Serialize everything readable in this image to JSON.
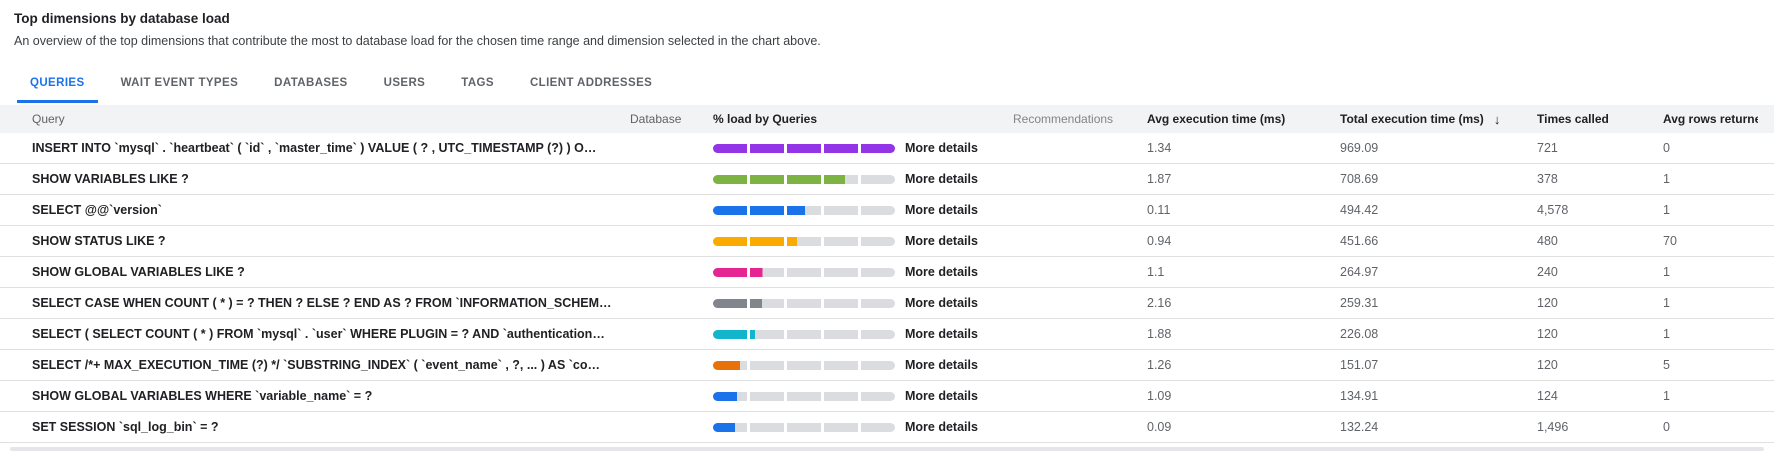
{
  "header": {
    "title": "Top dimensions by database load",
    "subtitle": "An overview of the top dimensions that contribute the most to database load for the chosen time range and dimension selected in the chart above."
  },
  "tabs": [
    {
      "label": "QUERIES",
      "active": true
    },
    {
      "label": "WAIT EVENT TYPES",
      "active": false
    },
    {
      "label": "DATABASES",
      "active": false
    },
    {
      "label": "USERS",
      "active": false
    },
    {
      "label": "TAGS",
      "active": false
    },
    {
      "label": "CLIENT ADDRESSES",
      "active": false
    }
  ],
  "table": {
    "columns": {
      "query": "Query",
      "database": "Database",
      "load": "% load by Queries",
      "recommendations": "Recommendations",
      "avg_time": "Avg execution time (ms)",
      "total_time": "Total execution time (ms)",
      "times_called": "Times called",
      "avg_rows": "Avg rows returned"
    },
    "sort": {
      "column": "total_time",
      "direction": "desc",
      "icon_glyph": "↓"
    },
    "more_details_label": "More details",
    "bar_track_color": "#dadce0",
    "bar_segments": 5,
    "rows": [
      {
        "query": "INSERT INTO `mysql` . `heartbeat` ( `id` , `master_time` ) VALUE ( ? , UTC_TIMESTAMP (?) ) O…",
        "database": "",
        "load_pct": 100,
        "bar_color": "#9334e6",
        "recommendations": "",
        "avg_time": "1.34",
        "total_time": "969.09",
        "times_called": "721",
        "avg_rows": "0"
      },
      {
        "query": "SHOW VARIABLES LIKE ?",
        "database": "",
        "load_pct": 72.5,
        "bar_color": "#7cb342",
        "recommendations": "",
        "avg_time": "1.87",
        "total_time": "708.69",
        "times_called": "378",
        "avg_rows": "1"
      },
      {
        "query": "SELECT @@`version`",
        "database": "",
        "load_pct": 50.5,
        "bar_color": "#1a73e8",
        "recommendations": "",
        "avg_time": "0.11",
        "total_time": "494.42",
        "times_called": "4,578",
        "avg_rows": "1"
      },
      {
        "query": "SHOW STATUS LIKE ?",
        "database": "",
        "load_pct": 46,
        "bar_color": "#f9ab00",
        "recommendations": "",
        "avg_time": "0.94",
        "total_time": "451.66",
        "times_called": "480",
        "avg_rows": "70"
      },
      {
        "query": "SHOW GLOBAL VARIABLES LIKE ?",
        "database": "",
        "load_pct": 27.5,
        "bar_color": "#e52592",
        "recommendations": "",
        "avg_time": "1.1",
        "total_time": "264.97",
        "times_called": "240",
        "avg_rows": "1"
      },
      {
        "query": "SELECT CASE WHEN COUNT ( * ) = ? THEN ? ELSE ? END AS ? FROM `INFORMATION_SCHEM…",
        "database": "",
        "load_pct": 27,
        "bar_color": "#80868b",
        "recommendations": "",
        "avg_time": "2.16",
        "total_time": "259.31",
        "times_called": "120",
        "avg_rows": "1"
      },
      {
        "query": "SELECT ( SELECT COUNT ( * ) FROM `mysql` . `user` WHERE PLUGIN = ? AND `authentication…",
        "database": "",
        "load_pct": 23,
        "bar_color": "#12b5cb",
        "recommendations": "",
        "avg_time": "1.88",
        "total_time": "226.08",
        "times_called": "120",
        "avg_rows": "1"
      },
      {
        "query": "SELECT /*+ MAX_EXECUTION_TIME (?) */ `SUBSTRING_INDEX` ( `event_name` , ?, ... ) AS `co…",
        "database": "",
        "load_pct": 16,
        "bar_color": "#e8710a",
        "recommendations": "",
        "avg_time": "1.26",
        "total_time": "151.07",
        "times_called": "120",
        "avg_rows": "5"
      },
      {
        "query": "SHOW GLOBAL VARIABLES WHERE `variable_name` = ?",
        "database": "",
        "load_pct": 14,
        "bar_color": "#1a73e8",
        "recommendations": "",
        "avg_time": "1.09",
        "total_time": "134.91",
        "times_called": "124",
        "avg_rows": "1"
      },
      {
        "query": "SET SESSION `sql_log_bin` = ?",
        "database": "",
        "load_pct": 13,
        "bar_color": "#1a73e8",
        "recommendations": "",
        "avg_time": "0.09",
        "total_time": "132.24",
        "times_called": "1,496",
        "avg_rows": "0"
      }
    ]
  },
  "colors": {
    "accent": "#1a73e8",
    "header_background": "#f1f3f4",
    "row_border": "#e0e0e0"
  }
}
